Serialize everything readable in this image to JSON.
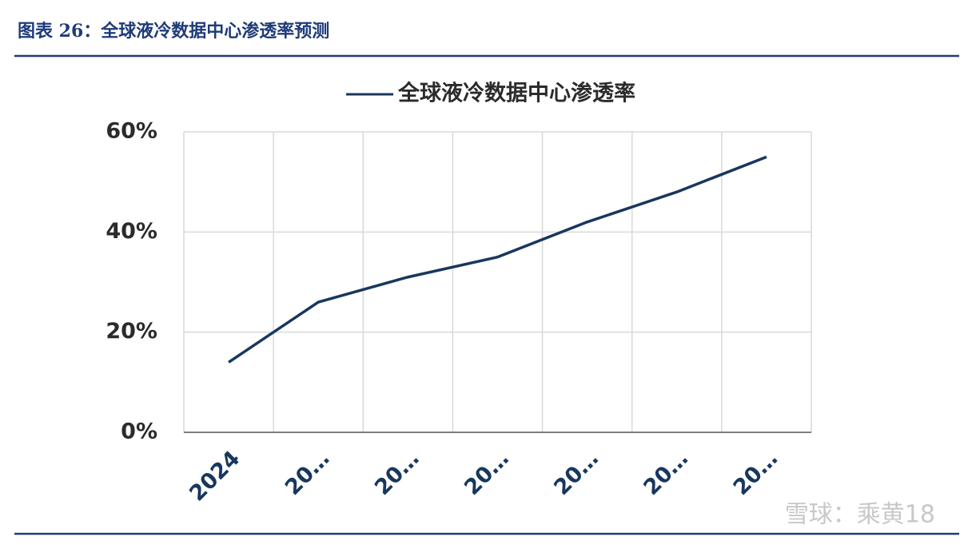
{
  "header": {
    "title": "图表 26：全球液冷数据中心渗透率预测"
  },
  "watermark": "雪球：乘黄18",
  "chart_data": {
    "type": "line",
    "categories": [
      "2024",
      "20…",
      "20…",
      "20…",
      "20…",
      "20…",
      "20…"
    ],
    "series": [
      {
        "name": "全球液冷数据中心渗透率",
        "color": "#17375e",
        "values": [
          14,
          26,
          31,
          35,
          42,
          48,
          55
        ]
      }
    ],
    "ylim": [
      0,
      60
    ],
    "yticks": [
      {
        "value": 0,
        "label": "0%"
      },
      {
        "value": 20,
        "label": "20%"
      },
      {
        "value": 40,
        "label": "40%"
      },
      {
        "value": 60,
        "label": "60%"
      }
    ],
    "grid": true,
    "legend": "top"
  }
}
